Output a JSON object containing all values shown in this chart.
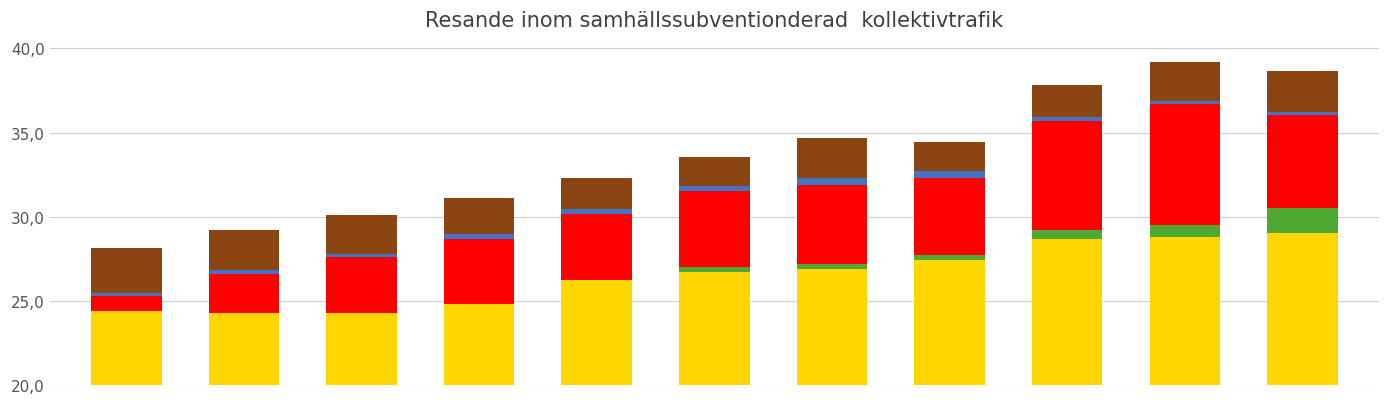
{
  "title": "Resande inom samhällssubventionderad  kollektivtrafik",
  "ylim": [
    20.0,
    40.5
  ],
  "yticks": [
    20.0,
    25.0,
    30.0,
    35.0,
    40.0
  ],
  "ytick_labels": [
    "20,0",
    "25,0",
    "30,0",
    "35,0",
    "40,0"
  ],
  "bar_width": 0.6,
  "colors": {
    "yellow": "#FFD700",
    "green": "#4EA832",
    "red": "#FF0000",
    "blue": "#4472C4",
    "brown": "#8B4513"
  },
  "bars": [
    {
      "yellow": 4.4,
      "green": 0.0,
      "red": 0.9,
      "blue": 0.15,
      "brown": 2.7
    },
    {
      "yellow": 4.3,
      "green": 0.0,
      "red": 2.3,
      "blue": 0.2,
      "brown": 2.4
    },
    {
      "yellow": 4.3,
      "green": 0.0,
      "red": 3.3,
      "blue": 0.2,
      "brown": 2.3
    },
    {
      "yellow": 4.8,
      "green": 0.0,
      "red": 3.85,
      "blue": 0.3,
      "brown": 2.15
    },
    {
      "yellow": 6.25,
      "green": 0.0,
      "red": 3.9,
      "blue": 0.3,
      "brown": 1.85
    },
    {
      "yellow": 6.7,
      "green": 0.3,
      "red": 4.5,
      "blue": 0.3,
      "brown": 1.75
    },
    {
      "yellow": 6.9,
      "green": 0.3,
      "red": 4.7,
      "blue": 0.4,
      "brown": 2.4
    },
    {
      "yellow": 7.4,
      "green": 0.3,
      "red": 4.6,
      "blue": 0.4,
      "brown": 1.75
    },
    {
      "yellow": 8.7,
      "green": 0.5,
      "red": 6.5,
      "blue": 0.2,
      "brown": 1.9
    },
    {
      "yellow": 8.8,
      "green": 0.7,
      "red": 7.2,
      "blue": 0.15,
      "brown": 2.35
    },
    {
      "yellow": 9.0,
      "green": 1.5,
      "red": 5.55,
      "blue": 0.15,
      "brown": 2.45
    }
  ],
  "base": 20.0
}
